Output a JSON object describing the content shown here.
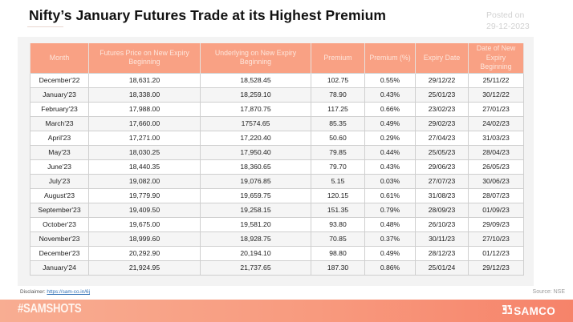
{
  "header": {
    "title": "Nifty’s January Futures Trade at its Highest Premium",
    "posted_label": "Posted on",
    "posted_date": "29-12-2023"
  },
  "table": {
    "columns": [
      "Month",
      "Futures Price on New Expiry Beginning",
      "Underlying on New Expiry Beginning",
      "Premium",
      "Premium (%)",
      "Expiry Date",
      "Date of New Expiry Beginning"
    ],
    "rows": [
      [
        "December'22",
        "18,631.20",
        "18,528.45",
        "102.75",
        "0.55%",
        "29/12/22",
        "25/11/22"
      ],
      [
        "January'23",
        "18,338.00",
        "18,259.10",
        "78.90",
        "0.43%",
        "25/01/23",
        "30/12/22"
      ],
      [
        "February'23",
        "17,988.00",
        "17,870.75",
        "117.25",
        "0.66%",
        "23/02/23",
        "27/01/23"
      ],
      [
        "March'23",
        "17,660.00",
        "17574.65",
        "85.35",
        "0.49%",
        "29/02/23",
        "24/02/23"
      ],
      [
        "April'23",
        "17,271.00",
        "17,220.40",
        "50.60",
        "0.29%",
        "27/04/23",
        "31/03/23"
      ],
      [
        "May'23",
        "18,030.25",
        "17,950.40",
        "79.85",
        "0.44%",
        "25/05/23",
        "28/04/23"
      ],
      [
        "June'23",
        "18,440.35",
        "18,360.65",
        "79.70",
        "0.43%",
        "29/06/23",
        "26/05/23"
      ],
      [
        "July'23",
        "19,082.00",
        "19,076.85",
        "5.15",
        "0.03%",
        "27/07/23",
        "30/06/23"
      ],
      [
        "August'23",
        "19,779.90",
        "19,659.75",
        "120.15",
        "0.61%",
        "31/08/23",
        "28/07/23"
      ],
      [
        "September'23",
        "19,409.50",
        "19,258.15",
        "151.35",
        "0.79%",
        "28/09/23",
        "01/09/23"
      ],
      [
        "October'23",
        "19,675.00",
        "19,581.20",
        "93.80",
        "0.48%",
        "26/10/23",
        "29/09/23"
      ],
      [
        "November'23",
        "18,999.60",
        "18,928.75",
        "70.85",
        "0.37%",
        "30/11/23",
        "27/10/23"
      ],
      [
        "December'23",
        "20,292.90",
        "20,194.10",
        "98.80",
        "0.49%",
        "28/12/23",
        "01/12/23"
      ],
      [
        "January'24",
        "21,924.95",
        "21,737.65",
        "187.30",
        "0.86%",
        "25/01/24",
        "29/12/23"
      ]
    ]
  },
  "notes": {
    "disclaimer_label": "Disclaimer:",
    "disclaimer_link": "https://sam-co.in/6j",
    "source": "Source:  NSE"
  },
  "footer": {
    "hashtag": "#SAMSHOTS",
    "brand": "SAMCO",
    "brand_icon": "samco-logo-icon"
  },
  "colors": {
    "header_bg": "#f9a184",
    "header_text": "#fde6dc",
    "footer_gradient_start": "#f8ad92",
    "footer_gradient_end": "#f6836a",
    "panel_bg": "#f3f3f3"
  }
}
